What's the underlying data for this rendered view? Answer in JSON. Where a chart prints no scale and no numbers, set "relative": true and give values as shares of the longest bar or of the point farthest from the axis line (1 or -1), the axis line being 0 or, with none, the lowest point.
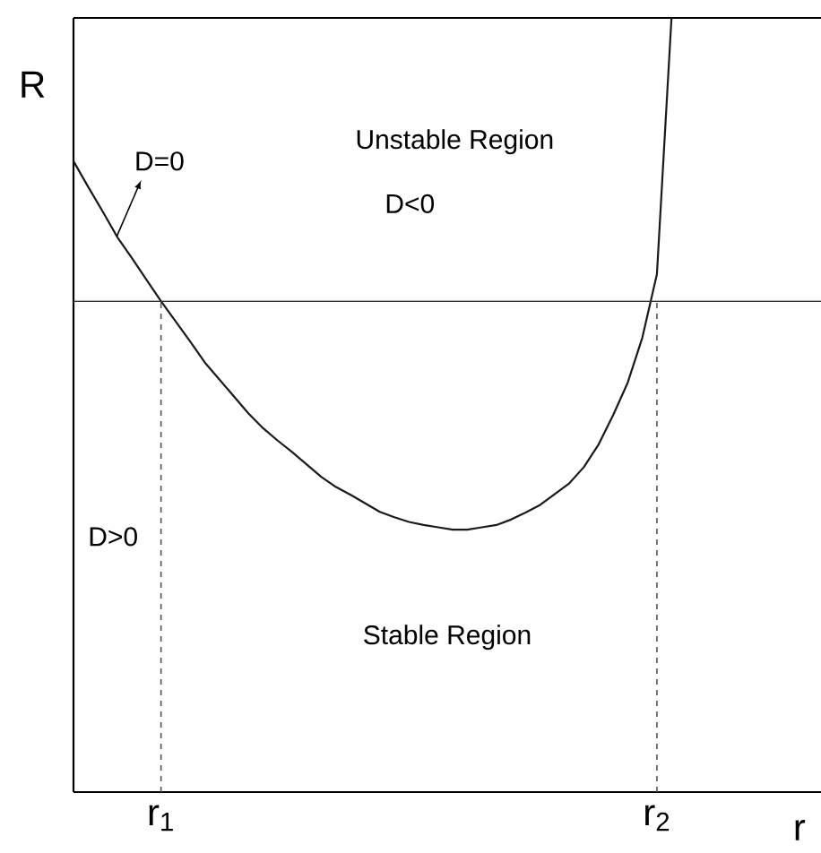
{
  "chart_data": {
    "type": "line",
    "relative": true,
    "xlabel": "r",
    "ylabel": "R",
    "categories": [
      null,
      null,
      null,
      null,
      null,
      null,
      "r$_{1}$",
      null,
      null,
      null,
      null,
      null,
      null,
      null,
      null,
      null,
      null,
      null,
      null,
      null,
      null,
      null,
      null,
      null,
      null,
      null,
      null,
      null,
      null,
      null,
      null,
      null,
      null,
      null,
      null,
      null,
      null,
      null,
      null,
      null,
      "r$_{2}$",
      null,
      null,
      null,
      null,
      null,
      null,
      null,
      null,
      null,
      null,
      null
    ],
    "series": [
      {
        "color": "#1a1a1a",
        "values": [
          0.815,
          0.782,
          0.75,
          0.717,
          0.69,
          0.662,
          0.634,
          0.608,
          0.582,
          0.555,
          0.533,
          0.511,
          0.489,
          0.47,
          0.454,
          0.439,
          0.423,
          0.407,
          0.394,
          0.384,
          0.373,
          0.362,
          0.355,
          0.349,
          0.345,
          0.342,
          0.339,
          0.339,
          0.342,
          0.345,
          0.352,
          0.361,
          0.371,
          0.385,
          0.399,
          0.42,
          0.449,
          0.487,
          0.529,
          0.587,
          0.669,
          1.0,
          null,
          null,
          null,
          null,
          null,
          null,
          null,
          null,
          null,
          null
        ]
      }
    ],
    "marker": "none",
    "line_style": "solid",
    "grid": false,
    "ref_lines": [
      {
        "axis": "y",
        "value": 0.634,
        "label": null,
        "color": "#333333",
        "line_style": "solid"
      },
      {
        "axis": "x",
        "value": "r$_{1}$",
        "label": null,
        "color": "#555555",
        "line_style": "dashed"
      },
      {
        "axis": "x",
        "value": "r$_{2}$",
        "label": null,
        "color": "#555555",
        "line_style": "dashed"
      }
    ],
    "annotations": [
      "D=0",
      "Unstable Region",
      "D<0",
      "D>0",
      "Stable Region"
    ]
  }
}
